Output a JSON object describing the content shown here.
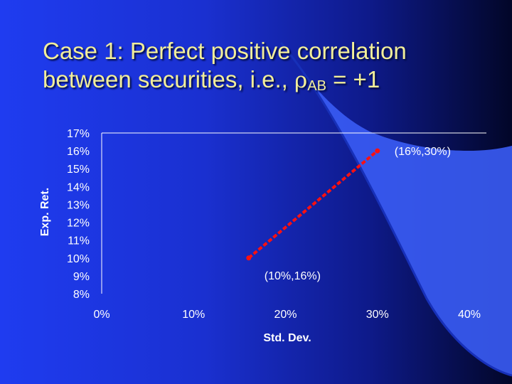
{
  "slide": {
    "title_line1": "Case 1:  Perfect positive correlation",
    "title_line2_prefix": "between securities, i.e., ",
    "title_rho": "ρ",
    "title_sub": "AB",
    "title_suffix": " = +1"
  },
  "colors": {
    "title": "#f2ee9a",
    "line": "#ff1010",
    "axis": "#ffffff"
  },
  "chart_data": {
    "type": "line",
    "xlabel": "Std. Dev.",
    "ylabel": "Exp. Ret.",
    "x_ticks": [
      "0%",
      "10%",
      "20%",
      "30%",
      "40%"
    ],
    "y_ticks": [
      "17%",
      "16%",
      "15%",
      "14%",
      "13%",
      "12%",
      "11%",
      "10%",
      "9%",
      "8%"
    ],
    "xlim": [
      0,
      40
    ],
    "ylim": [
      8,
      17
    ],
    "grid": false,
    "series": [
      {
        "line_style": "dashed",
        "points": [
          {
            "x": 16,
            "y": 10
          },
          {
            "x": 30,
            "y": 16
          }
        ]
      }
    ],
    "annotations": [
      {
        "text": "(10%,16%)",
        "x": 16,
        "y": 10
      },
      {
        "text": "(16%,30%)",
        "x": 30,
        "y": 16
      }
    ]
  }
}
